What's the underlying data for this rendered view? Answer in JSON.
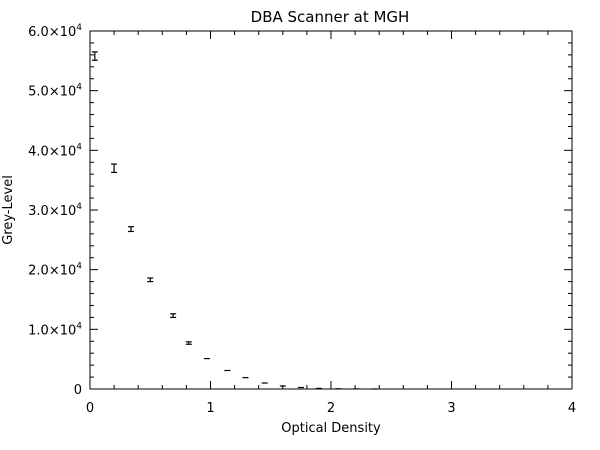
{
  "chart_data": {
    "type": "scatter",
    "title": "DBA Scanner at MGH",
    "xlabel": "Optical Density",
    "ylabel": "Grey-Level",
    "xlim": [
      0,
      4
    ],
    "ylim": [
      0,
      60000
    ],
    "grid": false,
    "x_ticks": [
      {
        "value": 0,
        "label": "0"
      },
      {
        "value": 1,
        "label": "1"
      },
      {
        "value": 2,
        "label": "2"
      },
      {
        "value": 3,
        "label": "3"
      },
      {
        "value": 4,
        "label": "4"
      }
    ],
    "y_ticks": [
      {
        "value": 0,
        "mant": "0",
        "exp": ""
      },
      {
        "value": 10000,
        "mant": "1.0×10",
        "exp": "4"
      },
      {
        "value": 20000,
        "mant": "2.0×10",
        "exp": "4"
      },
      {
        "value": 30000,
        "mant": "3.0×10",
        "exp": "4"
      },
      {
        "value": 40000,
        "mant": "4.0×10",
        "exp": "4"
      },
      {
        "value": 50000,
        "mant": "5.0×10",
        "exp": "4"
      },
      {
        "value": 60000,
        "mant": "6.0×10",
        "exp": "4"
      }
    ],
    "points": [
      {
        "x": 0.04,
        "y": 55800,
        "err": 700
      },
      {
        "x": 0.2,
        "y": 37000,
        "err": 700
      },
      {
        "x": 0.34,
        "y": 26800,
        "err": 400
      },
      {
        "x": 0.5,
        "y": 18300,
        "err": 300
      },
      {
        "x": 0.69,
        "y": 12300,
        "err": 300
      },
      {
        "x": 0.82,
        "y": 7700,
        "err": 200
      },
      {
        "x": 0.97,
        "y": 5100,
        "err": 150
      },
      {
        "x": 1.14,
        "y": 3100,
        "err": 100
      },
      {
        "x": 1.29,
        "y": 1900,
        "err": 80
      },
      {
        "x": 1.45,
        "y": 1000,
        "err": 60
      },
      {
        "x": 1.6,
        "y": 500,
        "err": 40
      },
      {
        "x": 1.75,
        "y": 250,
        "err": 30
      },
      {
        "x": 1.9,
        "y": 100,
        "err": 20
      },
      {
        "x": 2.06,
        "y": 40,
        "err": 15
      },
      {
        "x": 2.21,
        "y": 15,
        "err": 10
      },
      {
        "x": 2.36,
        "y": 5,
        "err": 5
      }
    ]
  }
}
